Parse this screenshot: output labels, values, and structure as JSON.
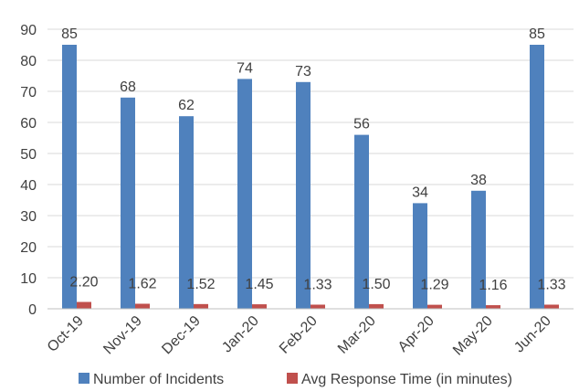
{
  "chart_data": {
    "type": "bar",
    "categories": [
      "Oct-19",
      "Nov-19",
      "Dec-19",
      "Jan-20",
      "Feb-20",
      "Mar-20",
      "Apr-20",
      "May-20",
      "Jun-20"
    ],
    "series": [
      {
        "name": "Number of Incidents",
        "color": "#4f81bd",
        "values": [
          85,
          68,
          62,
          74,
          73,
          56,
          34,
          38,
          85
        ],
        "labels": [
          "85",
          "68",
          "62",
          "74",
          "73",
          "56",
          "34",
          "38",
          "85"
        ]
      },
      {
        "name": "Avg Response Time (in minutes)",
        "color": "#c0504d",
        "values": [
          2.2,
          1.62,
          1.52,
          1.45,
          1.33,
          1.5,
          1.29,
          1.16,
          1.33
        ],
        "labels": [
          "2.20",
          "1.62",
          "1.52",
          "1.45",
          "1.33",
          "1.50",
          "1.29",
          "1.16",
          "1.33"
        ]
      }
    ],
    "ylim": [
      0,
      90
    ],
    "yticks": [
      "0",
      "10",
      "20",
      "30",
      "40",
      "50",
      "60",
      "70",
      "80",
      "90"
    ],
    "grid": true,
    "legend": "bottom"
  }
}
